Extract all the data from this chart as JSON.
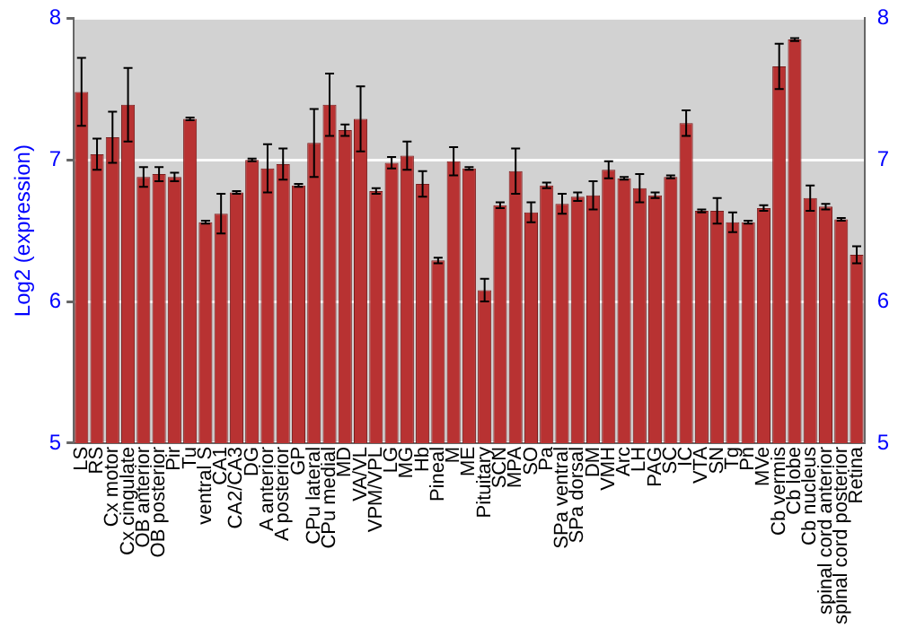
{
  "chart_data": {
    "type": "bar",
    "ylabel": "Log2 (expression)",
    "categories": [
      "LS",
      "RS",
      "Cx motor",
      "Cx cingulate",
      "OB anterior",
      "OB posterior",
      "Pir",
      "Tu",
      "ventral S",
      "CA1",
      "CA2/CA3",
      "DG",
      "A anterior",
      "A posterior",
      "GP",
      "CPu lateral",
      "CPu medial",
      "MD",
      "VA/VL",
      "VPM/VPL",
      "LG",
      "MG",
      "Hb",
      "Pineal",
      "M",
      "ME",
      "Pituitary",
      "SCN",
      "MPA",
      "SO",
      "Pa",
      "SPa ventral",
      "SPa dorsal",
      "DM",
      "VMH",
      "Arc",
      "LH",
      "PAG",
      "SC",
      "IC",
      "VTA",
      "SN",
      "Tg",
      "Pn",
      "MVe",
      "Cb vermis",
      "Cb lobe",
      "Cb nucleus",
      "spinal cord anterior",
      "spinal cord posterior",
      "Retina"
    ],
    "values": [
      7.48,
      7.04,
      7.16,
      7.39,
      6.88,
      6.9,
      6.88,
      7.29,
      6.56,
      6.62,
      6.77,
      7.0,
      6.94,
      6.97,
      6.82,
      7.12,
      7.39,
      7.21,
      7.29,
      6.78,
      6.98,
      7.03,
      6.83,
      6.29,
      6.99,
      6.94,
      6.08,
      6.68,
      6.92,
      6.63,
      6.82,
      6.69,
      6.74,
      6.75,
      6.93,
      6.87,
      6.8,
      6.75,
      6.88,
      7.26,
      6.64,
      6.64,
      6.56,
      6.56,
      6.66,
      7.66,
      7.85,
      6.73,
      6.67,
      6.58,
      6.33
    ],
    "errors": [
      0.24,
      0.11,
      0.18,
      0.26,
      0.07,
      0.05,
      0.03,
      0.01,
      0.01,
      0.14,
      0.01,
      0.01,
      0.17,
      0.11,
      0.01,
      0.24,
      0.22,
      0.04,
      0.23,
      0.02,
      0.04,
      0.1,
      0.09,
      0.02,
      0.1,
      0.01,
      0.08,
      0.02,
      0.16,
      0.07,
      0.02,
      0.07,
      0.03,
      0.1,
      0.06,
      0.01,
      0.1,
      0.02,
      0.01,
      0.09,
      0.01,
      0.09,
      0.07,
      0.01,
      0.02,
      0.16,
      0.01,
      0.09,
      0.02,
      0.01,
      0.06
    ],
    "color": "#b83232",
    "ylim": [
      5,
      8
    ],
    "yticks": [
      5,
      6,
      7,
      8
    ],
    "y2lim": [
      5,
      8
    ],
    "y2ticks": [
      5,
      6,
      7,
      8
    ],
    "grid": "y",
    "legend": false
  }
}
